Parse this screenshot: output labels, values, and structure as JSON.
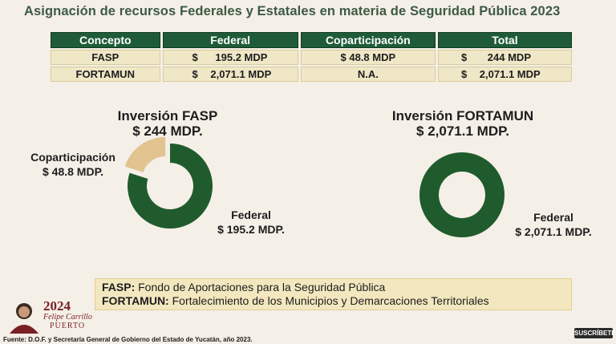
{
  "title": "Asignación de recursos Federales y Estatales en materia de Seguridad Pública 2023",
  "table": {
    "headers": [
      "Concepto",
      "Federal",
      "Coparticipación",
      "Total"
    ],
    "rows": [
      {
        "concepto": "FASP",
        "federal_cur": "$",
        "federal_val": "195.2 MDP",
        "copart": "$ 48.8 MDP",
        "total_cur": "$",
        "total_val": "244 MDP"
      },
      {
        "concepto": "FORTAMUN",
        "federal_cur": "$",
        "federal_val": "2,071.1 MDP",
        "copart": "N.A.",
        "total_cur": "$",
        "total_val": "2,071.1 MDP"
      }
    ]
  },
  "chart_data": [
    {
      "type": "pie",
      "title": "Inversión FASP",
      "subtitle": "$ 244 MDP.",
      "slices": [
        {
          "name": "Federal",
          "value": 195.2,
          "label": "$ 195.2 MDP.",
          "color": "#1f5b2c"
        },
        {
          "name": "Coparticipación",
          "value": 48.8,
          "label": "$ 48.8 MDP.",
          "color": "#e1c48f"
        }
      ]
    },
    {
      "type": "pie",
      "title": "Inversión FORTAMUN",
      "subtitle": "$ 2,071.1 MDP.",
      "slices": [
        {
          "name": "Federal",
          "value": 2071.1,
          "label": "$ 2,071.1 MDP.",
          "color": "#1f5b2c"
        }
      ]
    }
  ],
  "legend": [
    {
      "abbr": "FASP:",
      "text": "Fondo de Aportaciones para la Seguridad Pública"
    },
    {
      "abbr": "FORTAMUN:",
      "text": "Fortalecimiento de los Municipios y Demarcaciones Territoriales"
    }
  ],
  "logo": {
    "year": "2024",
    "name1": "Felipe Carrillo",
    "name2": "PUERTO"
  },
  "source": "Fuente: D.O.F. y Secretaría General de Gobierno del Estado de Yucatán, año 2023.",
  "subscribe": "SUSCRÍBETE"
}
